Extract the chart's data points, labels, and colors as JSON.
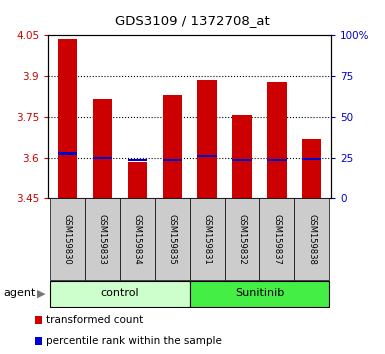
{
  "title": "GDS3109 / 1372708_at",
  "samples": [
    "GSM159830",
    "GSM159833",
    "GSM159834",
    "GSM159835",
    "GSM159831",
    "GSM159832",
    "GSM159837",
    "GSM159838"
  ],
  "red_values": [
    4.035,
    3.815,
    3.585,
    3.83,
    3.885,
    3.755,
    3.88,
    3.67
  ],
  "blue_values": [
    3.615,
    3.597,
    3.59,
    3.592,
    3.605,
    3.592,
    3.592,
    3.596
  ],
  "ymin": 3.45,
  "ymax": 4.05,
  "yticks": [
    3.45,
    3.6,
    3.75,
    3.9,
    4.05
  ],
  "right_yticks": [
    0,
    25,
    50,
    75,
    100
  ],
  "right_ytick_labels": [
    "0",
    "25",
    "50",
    "75",
    "100%"
  ],
  "bar_width": 0.55,
  "red_color": "#cc0000",
  "blue_color": "#0000cc",
  "left_tick_color": "#cc0000",
  "right_tick_color": "#0000cc",
  "bg_xticklabel": "#cccccc",
  "control_color": "#ccffcc",
  "sunitinib_color": "#44ee44",
  "agent_label": "agent",
  "legend1": "transformed count",
  "legend2": "percentile rank within the sample",
  "grid_lines": [
    3.6,
    3.75,
    3.9
  ]
}
